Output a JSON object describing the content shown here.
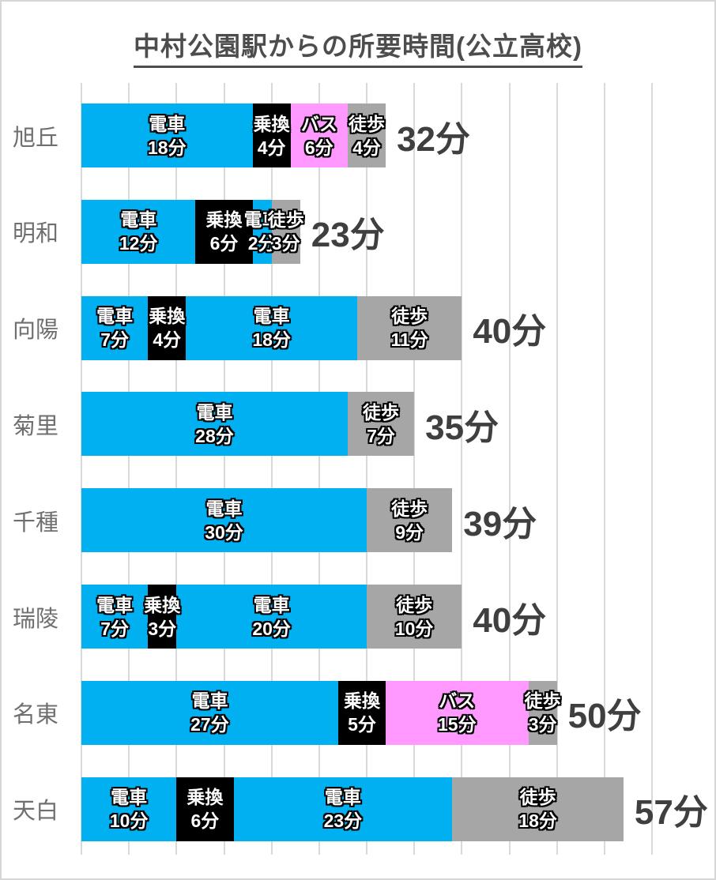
{
  "title": "中村公園駅からの所要時間(公立高校)",
  "colors": {
    "train": "#00B0F0",
    "transfer": "#000000",
    "bus": "#FF99FF",
    "walk": "#A6A6A6",
    "gridline": "#D9D9D9",
    "segment_text": "#FFFFFF",
    "total_label_text": "#3F3F3F",
    "row_label_text": "#6F6F6F",
    "title_text": "#4D4D4D"
  },
  "chart_data": {
    "type": "bar",
    "orientation": "horizontal-stacked",
    "title": "中村公園駅からの所要時間(公立高校)",
    "xlabel": "",
    "ylabel": "",
    "x_axis": {
      "min": 0,
      "max": 60,
      "gridline_interval_minutes": 5,
      "unit": "分",
      "tick_labels_visible": false
    },
    "grid": "vertical-lines-on",
    "legend": "none",
    "segment_types": {
      "train": "電車",
      "transfer": "乗換",
      "bus": "バス",
      "walk": "徒歩"
    },
    "categories": [
      "旭丘",
      "明和",
      "向陽",
      "菊里",
      "千種",
      "瑞陵",
      "名東",
      "天白"
    ],
    "rows": [
      {
        "school": "旭丘",
        "total_minutes": 32,
        "total_label": "32分",
        "segments": [
          {
            "type": "train",
            "label": "電車",
            "minutes": 18,
            "minutes_label": "18分"
          },
          {
            "type": "transfer",
            "label": "乗換",
            "minutes": 4,
            "minutes_label": "4分"
          },
          {
            "type": "bus",
            "label": "バス",
            "minutes": 6,
            "minutes_label": "6分"
          },
          {
            "type": "walk",
            "label": "徒歩",
            "minutes": 4,
            "minutes_label": "4分"
          }
        ]
      },
      {
        "school": "明和",
        "total_minutes": 23,
        "total_label": "23分",
        "segments": [
          {
            "type": "train",
            "label": "電車",
            "minutes": 12,
            "minutes_label": "12分"
          },
          {
            "type": "transfer",
            "label": "乗換",
            "minutes": 6,
            "minutes_label": "6分"
          },
          {
            "type": "train",
            "label": "電車",
            "minutes": 2,
            "minutes_label": "2分"
          },
          {
            "type": "walk",
            "label": "徒歩",
            "minutes": 3,
            "minutes_label": "3分"
          }
        ]
      },
      {
        "school": "向陽",
        "total_minutes": 40,
        "total_label": "40分",
        "segments": [
          {
            "type": "train",
            "label": "電車",
            "minutes": 7,
            "minutes_label": "7分"
          },
          {
            "type": "transfer",
            "label": "乗換",
            "minutes": 4,
            "minutes_label": "4分"
          },
          {
            "type": "train",
            "label": "電車",
            "minutes": 18,
            "minutes_label": "18分"
          },
          {
            "type": "walk",
            "label": "徒歩",
            "minutes": 11,
            "minutes_label": "11分"
          }
        ]
      },
      {
        "school": "菊里",
        "total_minutes": 35,
        "total_label": "35分",
        "segments": [
          {
            "type": "train",
            "label": "電車",
            "minutes": 28,
            "minutes_label": "28分"
          },
          {
            "type": "walk",
            "label": "徒歩",
            "minutes": 7,
            "minutes_label": "7分"
          }
        ]
      },
      {
        "school": "千種",
        "total_minutes": 39,
        "total_label": "39分",
        "segments": [
          {
            "type": "train",
            "label": "電車",
            "minutes": 30,
            "minutes_label": "30分"
          },
          {
            "type": "walk",
            "label": "徒歩",
            "minutes": 9,
            "minutes_label": "9分"
          }
        ]
      },
      {
        "school": "瑞陵",
        "total_minutes": 40,
        "total_label": "40分",
        "segments": [
          {
            "type": "train",
            "label": "電車",
            "minutes": 7,
            "minutes_label": "7分"
          },
          {
            "type": "transfer",
            "label": "乗換",
            "minutes": 3,
            "minutes_label": "3分"
          },
          {
            "type": "train",
            "label": "電車",
            "minutes": 20,
            "minutes_label": "20分"
          },
          {
            "type": "walk",
            "label": "徒歩",
            "minutes": 10,
            "minutes_label": "10分"
          }
        ]
      },
      {
        "school": "名東",
        "total_minutes": 50,
        "total_label": "50分",
        "segments": [
          {
            "type": "train",
            "label": "電車",
            "minutes": 27,
            "minutes_label": "27分"
          },
          {
            "type": "transfer",
            "label": "乗換",
            "minutes": 5,
            "minutes_label": "5分"
          },
          {
            "type": "bus",
            "label": "バス",
            "minutes": 15,
            "minutes_label": "15分"
          },
          {
            "type": "walk",
            "label": "徒歩",
            "minutes": 3,
            "minutes_label": "3分"
          }
        ]
      },
      {
        "school": "天白",
        "total_minutes": 57,
        "total_label": "57分",
        "segments": [
          {
            "type": "train",
            "label": "電車",
            "minutes": 10,
            "minutes_label": "10分"
          },
          {
            "type": "transfer",
            "label": "乗換",
            "minutes": 6,
            "minutes_label": "6分"
          },
          {
            "type": "train",
            "label": "電車",
            "minutes": 23,
            "minutes_label": "23分"
          },
          {
            "type": "walk",
            "label": "徒歩",
            "minutes": 18,
            "minutes_label": "18分"
          }
        ]
      }
    ]
  }
}
